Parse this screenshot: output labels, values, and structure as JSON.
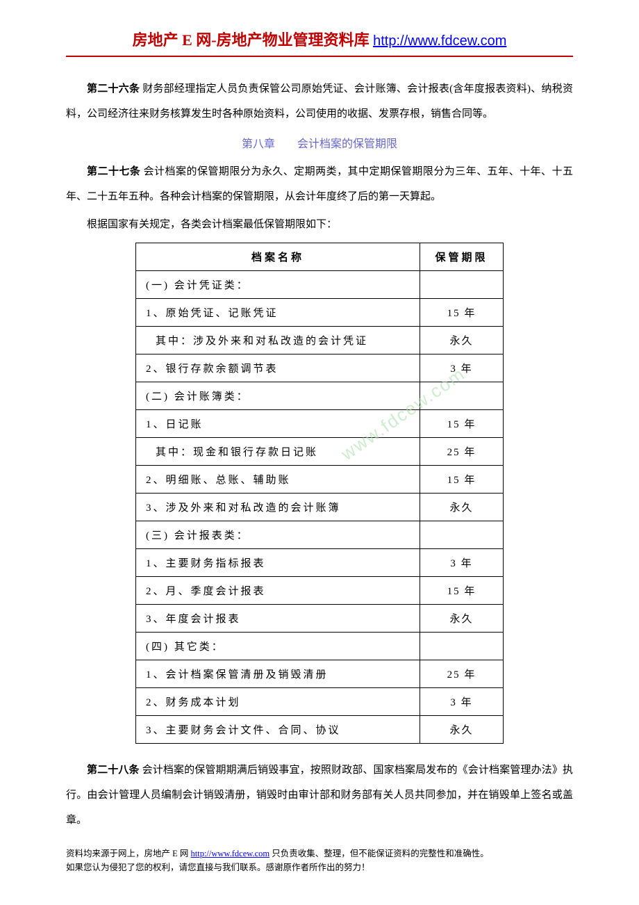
{
  "header": {
    "title_part1": "房地产 E 网-",
    "title_part2": "房地产物业管理资料库 ",
    "url": "http://www.fdcew.com"
  },
  "article26": {
    "label": "第二十六条",
    "text": " 财务部经理指定人员负责保管公司原始凭证、会计账簿、会计报表(含年度报表资料)、纳税资料，公司经济往来财务核算发生时各种原始资料，公司使用的收据、发票存根，销售合同等。"
  },
  "chapter8": {
    "title": "第八章　　会计档案的保管期限"
  },
  "article27": {
    "label": "第二十七条",
    "text": " 会计档案的保管期限分为永久、定期两类，其中定期保管期限分为三年、五年、十年、十五年、二十五年五种。各种会计档案的保管期限，从会计年度终了后的第一天算起。"
  },
  "table_intro": "根据国家有关规定，各类会计档案最低保管期限如下：",
  "table": {
    "headers": {
      "name": "档案名称",
      "period": "保管期限"
    },
    "rows": [
      {
        "name": "(一) 会计凭证类：",
        "period": "",
        "indent": false
      },
      {
        "name": "1、原始凭证、记账凭证",
        "period": "15 年",
        "indent": false
      },
      {
        "name": "其中：涉及外来和对私改造的会计凭证",
        "period": "永久",
        "indent": true
      },
      {
        "name": "2、银行存款余额调节表",
        "period": "3 年",
        "indent": false
      },
      {
        "name": "(二) 会计账簿类：",
        "period": "",
        "indent": false
      },
      {
        "name": "1、日记账",
        "period": "15 年",
        "indent": false
      },
      {
        "name": "其中：现金和银行存款日记账",
        "period": "25 年",
        "indent": true
      },
      {
        "name": "2、明细账、总账、辅助账",
        "period": "15 年",
        "indent": false
      },
      {
        "name": "3、涉及外来和对私改造的会计账簿",
        "period": "永久",
        "indent": false
      },
      {
        "name": "(三) 会计报表类：",
        "period": "",
        "indent": false
      },
      {
        "name": "1、主要财务指标报表",
        "period": "3 年",
        "indent": false
      },
      {
        "name": "2、月、季度会计报表",
        "period": "15 年",
        "indent": false
      },
      {
        "name": "3、年度会计报表",
        "period": "永久",
        "indent": false
      },
      {
        "name": "(四) 其它类：",
        "period": "",
        "indent": false
      },
      {
        "name": "1、会计档案保管清册及销毁清册",
        "period": "25 年",
        "indent": false
      },
      {
        "name": "2、财务成本计划",
        "period": "3 年",
        "indent": false
      },
      {
        "name": "3、主要财务会计文件、合同、协议",
        "period": "永久",
        "indent": false
      }
    ]
  },
  "article28": {
    "label": "第二十八条",
    "text": " 会计档案的保管期期满后销毁事宜，按照财政部、国家档案局发布的《会计档案管理办法》执行。由会计管理人员编制会计销毁清册，销毁时由审计部和财务部有关人员共同参加，并在销毁单上签名或盖章。"
  },
  "watermark": "www.fdcew.com",
  "footer": {
    "line1_pre": "资料均来源于网上，房地产 E 网 ",
    "line1_link": "http://www.fdcew.com",
    "line1_post": " 只负责收集、整理，但不能保证资料的完整性和准确性。",
    "line2": "如果您认为侵犯了您的权利，请您直接与我们联系。感谢原作者所作出的努力！"
  }
}
